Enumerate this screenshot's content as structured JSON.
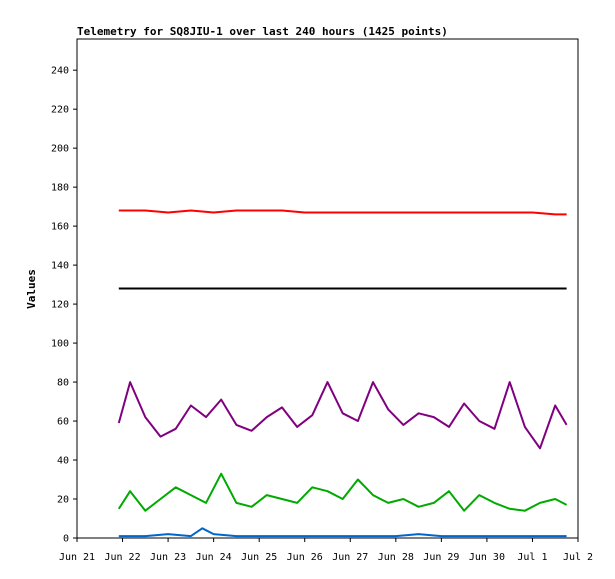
{
  "chart_data": {
    "type": "line",
    "title": "Telemetry for SQ8JIU-1 over last 240 hours (1425 points)",
    "xlabel": "",
    "ylabel": "Values",
    "ylim": [
      0,
      256
    ],
    "yticks": [
      0,
      20,
      40,
      60,
      80,
      100,
      120,
      140,
      160,
      180,
      200,
      220,
      240
    ],
    "xlim": [
      "2024-06-21",
      "2024-07-02"
    ],
    "xticks": [
      "Jun 21",
      "Jun 22",
      "Jun 23",
      "Jun 24",
      "Jun 25",
      "Jun 26",
      "Jun 27",
      "Jun 28",
      "Jun 29",
      "Jun 30",
      "Jul 1",
      "Jul 2"
    ],
    "grid": false,
    "legend": "none",
    "series": [
      {
        "color": "#ff0000",
        "x": [
          "Jun 21 22:00",
          "Jun 22 12:00",
          "Jun 23 00:00",
          "Jun 23 12:00",
          "Jun 24 00:00",
          "Jun 24 12:00",
          "Jun 25 00:00",
          "Jun 25 12:00",
          "Jun 26 00:00",
          "Jun 26 12:00",
          "Jun 27 00:00",
          "Jun 27 12:00",
          "Jun 28 00:00",
          "Jun 28 12:00",
          "Jun 29 00:00",
          "Jun 29 12:00",
          "Jun 30 00:00",
          "Jun 30 12:00",
          "Jul 1 00:00",
          "Jul 1 12:00",
          "Jul 1 18:00"
        ],
        "values": [
          168,
          168,
          167,
          168,
          167,
          168,
          168,
          168,
          167,
          167,
          167,
          167,
          167,
          167,
          167,
          167,
          167,
          167,
          167,
          166,
          166
        ]
      },
      {
        "color": "#000000",
        "x": [
          "Jun 21 22:00",
          "Jul 1 18:00"
        ],
        "values": [
          128,
          128
        ]
      },
      {
        "color": "#800080",
        "x": [
          "Jun 21 22:00",
          "Jun 22 04:00",
          "Jun 22 12:00",
          "Jun 22 20:00",
          "Jun 23 04:00",
          "Jun 23 12:00",
          "Jun 23 20:00",
          "Jun 24 04:00",
          "Jun 24 12:00",
          "Jun 24 20:00",
          "Jun 25 04:00",
          "Jun 25 12:00",
          "Jun 25 20:00",
          "Jun 26 04:00",
          "Jun 26 12:00",
          "Jun 26 20:00",
          "Jun 27 04:00",
          "Jun 27 12:00",
          "Jun 27 20:00",
          "Jun 28 04:00",
          "Jun 28 12:00",
          "Jun 28 20:00",
          "Jun 29 04:00",
          "Jun 29 12:00",
          "Jun 29 20:00",
          "Jun 30 04:00",
          "Jun 30 12:00",
          "Jun 30 20:00",
          "Jul 1 04:00",
          "Jul 1 12:00",
          "Jul 1 18:00"
        ],
        "values": [
          59,
          80,
          62,
          52,
          56,
          68,
          62,
          71,
          58,
          55,
          62,
          67,
          57,
          63,
          80,
          64,
          60,
          80,
          66,
          58,
          64,
          62,
          57,
          69,
          60,
          56,
          80,
          57,
          46,
          68,
          58
        ]
      },
      {
        "color": "#00aa00",
        "x": [
          "Jun 21 22:00",
          "Jun 22 04:00",
          "Jun 22 12:00",
          "Jun 22 20:00",
          "Jun 23 04:00",
          "Jun 23 12:00",
          "Jun 23 20:00",
          "Jun 24 04:00",
          "Jun 24 12:00",
          "Jun 24 20:00",
          "Jun 25 04:00",
          "Jun 25 12:00",
          "Jun 25 20:00",
          "Jun 26 04:00",
          "Jun 26 12:00",
          "Jun 26 20:00",
          "Jun 27 04:00",
          "Jun 27 12:00",
          "Jun 27 20:00",
          "Jun 28 04:00",
          "Jun 28 12:00",
          "Jun 28 20:00",
          "Jun 29 04:00",
          "Jun 29 12:00",
          "Jun 29 20:00",
          "Jun 30 04:00",
          "Jun 30 12:00",
          "Jun 30 20:00",
          "Jul 1 04:00",
          "Jul 1 12:00",
          "Jul 1 18:00"
        ],
        "values": [
          15,
          24,
          14,
          20,
          26,
          22,
          18,
          33,
          18,
          16,
          22,
          20,
          18,
          26,
          24,
          20,
          30,
          22,
          18,
          20,
          16,
          18,
          24,
          14,
          22,
          18,
          15,
          14,
          18,
          20,
          17
        ]
      },
      {
        "color": "#0066cc",
        "x": [
          "Jun 21 22:00",
          "Jun 22 12:00",
          "Jun 23 00:00",
          "Jun 23 12:00",
          "Jun 23 18:00",
          "Jun 24 00:00",
          "Jun 24 12:00",
          "Jun 25 00:00",
          "Jun 26 00:00",
          "Jun 27 00:00",
          "Jun 28 00:00",
          "Jun 28 12:00",
          "Jun 29 00:00",
          "Jun 30 00:00",
          "Jul 1 00:00",
          "Jul 1 18:00"
        ],
        "values": [
          1,
          1,
          2,
          1,
          5,
          2,
          1,
          1,
          1,
          1,
          1,
          2,
          1,
          1,
          1,
          1
        ]
      }
    ]
  }
}
